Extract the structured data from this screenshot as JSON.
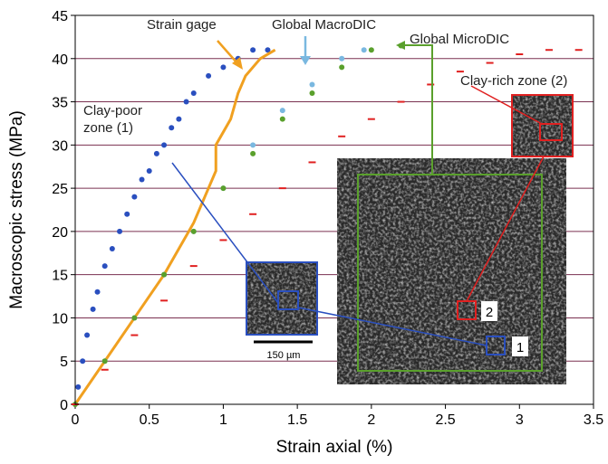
{
  "chart_data": {
    "type": "scatter",
    "x_label": "Strain axial (%)",
    "y_label": "Macroscopic stress (MPa)",
    "xlim": [
      0,
      3.5
    ],
    "ylim": [
      0,
      45
    ],
    "xticks": [
      0,
      0.5,
      1,
      1.5,
      2,
      2.5,
      3,
      3.5
    ],
    "yticks": [
      0,
      5,
      10,
      15,
      20,
      25,
      30,
      35,
      40,
      45
    ],
    "grid": true,
    "grid_color": "#7a3050",
    "series": [
      {
        "name": "Clay-poor zone (1)",
        "color": "#2a4fbf",
        "marker": "dot",
        "x": [
          0.02,
          0.05,
          0.08,
          0.12,
          0.15,
          0.2,
          0.25,
          0.3,
          0.35,
          0.4,
          0.45,
          0.5,
          0.55,
          0.6,
          0.65,
          0.7,
          0.75,
          0.8,
          0.9,
          1.0,
          1.1,
          1.2,
          1.3
        ],
        "values": [
          2,
          5,
          8,
          11,
          13,
          16,
          18,
          20,
          22,
          24,
          26,
          27,
          29,
          30,
          32,
          33,
          35,
          36,
          38,
          39,
          40,
          41,
          41
        ]
      },
      {
        "name": "Strain gage",
        "color": "#f0a020",
        "marker": "line",
        "x": [
          0,
          0.2,
          0.4,
          0.6,
          0.8,
          0.95,
          0.95,
          1.05,
          1.1,
          1.15,
          1.25,
          1.35
        ],
        "values": [
          0,
          5,
          10,
          15,
          21,
          27,
          30,
          33,
          36,
          38,
          40,
          41
        ]
      },
      {
        "name": "Global MacroDIC",
        "color": "#7ab8e0",
        "marker": "dot",
        "x": [
          0,
          0.2,
          0.4,
          0.6,
          0.8,
          1.0,
          1.2,
          1.4,
          1.6,
          1.8,
          1.95
        ],
        "values": [
          0,
          5,
          10,
          15,
          20,
          25,
          30,
          34,
          37,
          40,
          41
        ]
      },
      {
        "name": "Global MicroDIC",
        "color": "#5aa02c",
        "marker": "dot",
        "x": [
          0,
          0.2,
          0.4,
          0.6,
          0.8,
          1.0,
          1.2,
          1.4,
          1.6,
          1.8,
          2.0,
          2.2
        ],
        "values": [
          0,
          5,
          10,
          15,
          20,
          25,
          29,
          33,
          36,
          39,
          41,
          41.5
        ]
      },
      {
        "name": "Clay-rich zone (2)",
        "color": "#e02020",
        "marker": "dash",
        "x": [
          0,
          0.2,
          0.4,
          0.6,
          0.8,
          1.0,
          1.2,
          1.4,
          1.6,
          1.8,
          2.0,
          2.2,
          2.4,
          2.6,
          2.8,
          3.0,
          3.2,
          3.4
        ],
        "values": [
          0,
          4,
          8,
          12,
          16,
          19,
          22,
          25,
          28,
          31,
          33,
          35,
          37,
          38.5,
          39.5,
          40.5,
          41,
          41
        ]
      }
    ],
    "annotations": [
      "150 µm",
      "1",
      "2"
    ]
  }
}
